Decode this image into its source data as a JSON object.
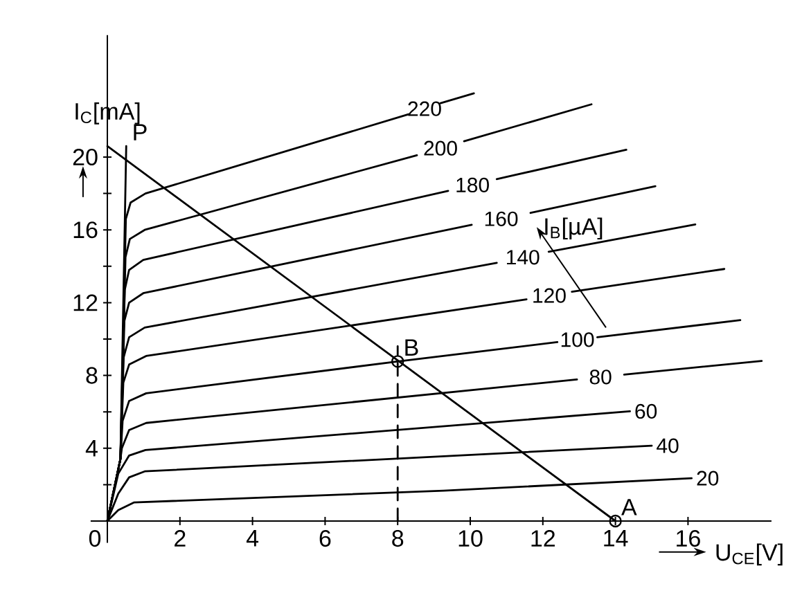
{
  "chart_data": {
    "type": "line",
    "xlabel": "U$_{CE}$[V]",
    "ylabel": "I$_{C}$[mA]",
    "marker": "none",
    "xlim": [
      -0.46,
      18.3
    ],
    "ylim": [
      -1.2,
      26.7
    ],
    "xticks": [
      0,
      2,
      4,
      6,
      8,
      10,
      12,
      14,
      16
    ],
    "yticks": [
      {
        "value": 2,
        "label": null
      },
      4,
      {
        "value": 6,
        "label": null
      },
      8,
      {
        "value": 10,
        "label": null
      },
      12,
      {
        "value": 14,
        "label": null
      },
      16,
      {
        "value": 18,
        "label": null
      },
      20
    ],
    "series": [
      {
        "name": "20",
        "color": "#000000",
        "x": [
          0,
          0.3,
          0.73,
          9.27,
          16.1
        ],
        "values": [
          0,
          0.6,
          1.02,
          1.67,
          2.35
        ]
      },
      {
        "name": "40",
        "color": "#000000",
        "x": [
          0,
          0.3,
          0.6,
          1.03,
          15.0
        ],
        "values": [
          0,
          1.5,
          2.4,
          2.73,
          4.14
        ]
      },
      {
        "name": "60",
        "color": "#000000",
        "x": [
          0,
          0.3,
          0.6,
          1.05,
          14.4
        ],
        "values": [
          0,
          2.6,
          3.6,
          3.9,
          6.03
        ]
      },
      {
        "name": "80",
        "color": "#000000",
        "x": [
          0,
          0.36,
          0.4,
          0.6,
          1.07,
          12.94,
          13.6,
          14.24,
          18.03
        ],
        "values": [
          0,
          3.4,
          4.0,
          5.0,
          5.39,
          7.78,
          null,
          8.05,
          8.8
        ]
      },
      {
        "name": "100",
        "color": "#000000",
        "x": [
          0,
          0.36,
          0.42,
          0.6,
          1.07,
          8.0,
          12.4,
          12.95,
          13.5,
          17.44
        ],
        "values": [
          0,
          3.4,
          5.5,
          6.6,
          7.02,
          8.77,
          9.83,
          null,
          10.1,
          11.04
        ]
      },
      {
        "name": "120",
        "color": "#000000",
        "x": [
          0,
          0.36,
          0.44,
          0.6,
          1.07,
          11.55,
          12.2,
          12.8,
          17.0
        ],
        "values": [
          0,
          3.4,
          7.6,
          8.6,
          9.07,
          12.18,
          null,
          12.6,
          13.85
        ]
      },
      {
        "name": "140",
        "color": "#000000",
        "x": [
          0,
          0.36,
          0.45,
          0.6,
          1.03,
          10.73,
          11.4,
          12.16,
          16.2
        ],
        "values": [
          0,
          3.4,
          9.0,
          10.1,
          10.63,
          14.19,
          null,
          14.8,
          16.3
        ]
      },
      {
        "name": "160",
        "color": "#000000",
        "x": [
          0,
          0.36,
          0.47,
          0.6,
          0.99,
          10.04,
          10.8,
          11.66,
          15.1
        ],
        "values": [
          0,
          3.4,
          11.0,
          12.0,
          12.52,
          16.28,
          null,
          16.93,
          18.4
        ]
      },
      {
        "name": "180",
        "color": "#000000",
        "x": [
          0,
          0.36,
          0.48,
          0.6,
          0.99,
          9.39,
          10.1,
          10.73,
          14.3
        ],
        "values": [
          0,
          3.4,
          12.7,
          13.8,
          14.35,
          18.14,
          null,
          18.79,
          20.4
        ]
      },
      {
        "name": "200",
        "color": "#000000",
        "x": [
          0,
          0.36,
          0.5,
          0.62,
          1.03,
          8.53,
          9.2,
          9.83,
          13.34
        ],
        "values": [
          0,
          3.4,
          14.5,
          15.5,
          16.0,
          20.1,
          null,
          20.87,
          22.9
        ]
      },
      {
        "name": "220",
        "color": "#000000",
        "x": [
          0,
          0.36,
          0.51,
          0.64,
          1.05,
          8.3,
          8.7,
          9.18,
          10.1
        ],
        "values": [
          0,
          3.4,
          16.6,
          17.5,
          18.0,
          22.35,
          null,
          22.96,
          23.5
        ]
      },
      {
        "color": "#000000",
        "x": [
          0.36,
          0.52
        ],
        "values": [
          3.4,
          20.6
        ]
      },
      {
        "color": "#000000",
        "x": [
          0,
          14
        ],
        "values": [
          20.6,
          0
        ]
      },
      {
        "color": "#000000",
        "line_style": "dashed",
        "x": [
          8,
          8
        ],
        "values": [
          0,
          9.6
        ]
      },
      {
        "type": "scatter",
        "marker": "circle",
        "color": "#000000",
        "x": [
          8,
          14
        ],
        "values": [
          8.77,
          0
        ]
      }
    ],
    "annotations": [
      {
        "text": "P",
        "x": 0.52,
        "y": 20.6
      },
      {
        "text": "B",
        "x": 8,
        "y": 8.77
      },
      {
        "text": "A",
        "x": 14,
        "y": 0
      },
      "I$_{B}$[µA]"
    ]
  }
}
